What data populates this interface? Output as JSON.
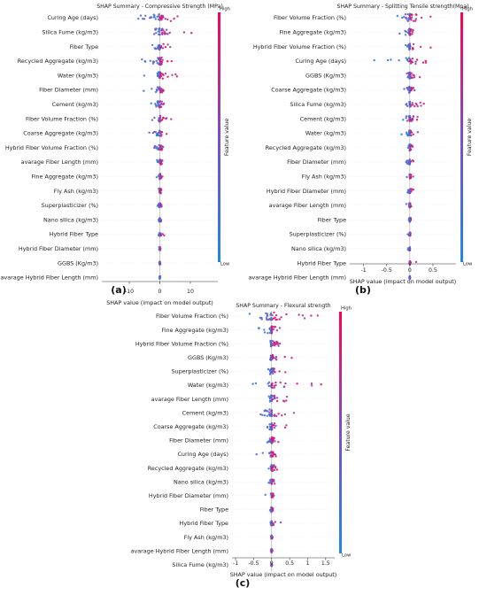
{
  "colorbar": {
    "high_label": "High",
    "low_label": "Low",
    "title": "Feature value",
    "low_color": "#1e88e5",
    "high_color": "#ff0052"
  },
  "chart_data": [
    {
      "type": "scatter",
      "panel_label": "(a)",
      "title": "SHAP Summary - Compressive Strength (MPa)",
      "xlabel": "SHAP value (impact on model output)",
      "xlim": [
        -19,
        19
      ],
      "xticks": [
        -10,
        0,
        10
      ],
      "features": [
        {
          "name": "Curing Age (days)",
          "min": -16,
          "max": 13,
          "spread": 0.9
        },
        {
          "name": "Silica Fume (kg/m3)",
          "min": -3,
          "max": 15,
          "spread": 0.8
        },
        {
          "name": "Fiber Type",
          "min": -3,
          "max": 9,
          "spread": 0.7
        },
        {
          "name": "Recycled Aggregate (kg/m3)",
          "min": -9,
          "max": 5,
          "spread": 0.8
        },
        {
          "name": "Water (kg/m3)",
          "min": -7,
          "max": 9,
          "spread": 0.7
        },
        {
          "name": "Fiber Diameter (mm)",
          "min": -6,
          "max": 4,
          "spread": 0.6
        },
        {
          "name": "Cement (kg/m3)",
          "min": -5,
          "max": 5,
          "spread": 0.7
        },
        {
          "name": "Fiber Volume Fraction (%)",
          "min": -3,
          "max": 4,
          "spread": 0.6
        },
        {
          "name": "Coarse Aggregate (kg/m3)",
          "min": -4,
          "max": 3,
          "spread": 0.6
        },
        {
          "name": "Hybrid Fiber Volume Fraction (%)",
          "min": -5,
          "max": 3,
          "spread": 0.5
        },
        {
          "name": "avarage Fiber Length (mm)",
          "min": -2,
          "max": 2,
          "spread": 0.5
        },
        {
          "name": "Fine Aggregate (kg/m3)",
          "min": -2,
          "max": 2,
          "spread": 0.5
        },
        {
          "name": "Fly Ash (kg/m3)",
          "min": -2,
          "max": 1,
          "spread": 0.4
        },
        {
          "name": "Superplasticizer (%)",
          "min": -1,
          "max": 1,
          "spread": 0.3
        },
        {
          "name": "Nano silica (kg/m3)",
          "min": -1,
          "max": 1,
          "spread": 0.3
        },
        {
          "name": "Hybrid Fiber Type",
          "min": -1,
          "max": 2,
          "spread": 0.2
        },
        {
          "name": "Hybrid Fiber Diameter (mm)",
          "min": -0.5,
          "max": 0.5,
          "spread": 0.2
        },
        {
          "name": "GGBS (Kg/m3)",
          "min": -0.3,
          "max": 0.3,
          "spread": 0.1
        },
        {
          "name": "avarage Hybrid Fiber Length (mm)",
          "min": -0.2,
          "max": 0.2,
          "spread": 0.1
        }
      ]
    },
    {
      "type": "scatter",
      "panel_label": "(b)",
      "title": "SHAP Summary - Splitting Tensile strength(Mpa)",
      "xlabel": "SHAP value (impact on model output)",
      "xlim": [
        -1.3,
        1.0
      ],
      "xticks": [
        -1.0,
        -0.5,
        0.0,
        0.5
      ],
      "features": [
        {
          "name": "Fiber Volume Fraction (%)",
          "min": -0.3,
          "max": 0.7,
          "spread": 0.9
        },
        {
          "name": "Fine Aggregate (kg/m3)",
          "min": -0.3,
          "max": 0.3,
          "spread": 0.8
        },
        {
          "name": "Hybrid Fiber Volume Fraction (%)",
          "min": -0.1,
          "max": 0.8,
          "spread": 0.6
        },
        {
          "name": "Curing Age (days)",
          "min": -1.1,
          "max": 0.4,
          "spread": 0.6
        },
        {
          "name": "GGBS (Kg/m3)",
          "min": -0.1,
          "max": 0.5,
          "spread": 0.6
        },
        {
          "name": "Coarse Aggregate (kg/m3)",
          "min": -0.3,
          "max": 0.2,
          "spread": 0.6
        },
        {
          "name": "Silica Fume (kg/m3)",
          "min": -0.1,
          "max": 0.4,
          "spread": 0.5
        },
        {
          "name": "Cement (kg/m3)",
          "min": -0.2,
          "max": 0.3,
          "spread": 0.6
        },
        {
          "name": "Water (kg/m3)",
          "min": -0.4,
          "max": 0.3,
          "spread": 0.5
        },
        {
          "name": "Recycled Aggregate (kg/m3)",
          "min": -0.1,
          "max": 0.1,
          "spread": 0.7
        },
        {
          "name": "Fiber Diameter (mm)",
          "min": -0.1,
          "max": 0.1,
          "spread": 0.5
        },
        {
          "name": "Fly Ash (kg/m3)",
          "min": -0.2,
          "max": 0.1,
          "spread": 0.4
        },
        {
          "name": "Hybrid Fiber Diameter (mm)",
          "min": -0.1,
          "max": 0.1,
          "spread": 0.4
        },
        {
          "name": "avarage Fiber Length (mm)",
          "min": -0.1,
          "max": 0.1,
          "spread": 0.4
        },
        {
          "name": "Fiber Type",
          "min": -0.05,
          "max": 0.05,
          "spread": 0.4
        },
        {
          "name": "Superplasticizer (%)",
          "min": -0.05,
          "max": 0.05,
          "spread": 0.3
        },
        {
          "name": "Nano silica (kg/m3)",
          "min": -0.05,
          "max": 0.05,
          "spread": 0.3
        },
        {
          "name": "Hybrid Fiber Type",
          "min": -0.02,
          "max": 0.2,
          "spread": 0.2
        },
        {
          "name": "avarage Hybrid Fiber Length (mm)",
          "min": -0.02,
          "max": 0.02,
          "spread": 0.2
        }
      ]
    },
    {
      "type": "scatter",
      "panel_label": "(c)",
      "title": "SHAP Summary - Flexural strength",
      "xlabel": "SHAP value (impact on model output)",
      "xlim": [
        -1.1,
        1.75
      ],
      "xticks": [
        -1.0,
        -0.5,
        0.0,
        0.5,
        1.0,
        1.5
      ],
      "features": [
        {
          "name": "Fiber Volume Fraction (%)",
          "min": -1.0,
          "max": 1.5,
          "spread": 0.9
        },
        {
          "name": "Fine Aggregate (kg/m3)",
          "min": -0.5,
          "max": 0.4,
          "spread": 0.8
        },
        {
          "name": "Hybrid Fiber Volume Fraction (%)",
          "min": -0.1,
          "max": 1.1,
          "spread": 0.6
        },
        {
          "name": "GGBS (Kg/m3)",
          "min": -0.1,
          "max": 1.1,
          "spread": 0.6
        },
        {
          "name": "Superplasticizer (%)",
          "min": -0.2,
          "max": 0.4,
          "spread": 0.6
        },
        {
          "name": "Water (kg/m3)",
          "min": -0.7,
          "max": 1.7,
          "spread": 0.6
        },
        {
          "name": "avarage Fiber Length (mm)",
          "min": -0.2,
          "max": 1.0,
          "spread": 0.8
        },
        {
          "name": "Cement (kg/m3)",
          "min": -0.4,
          "max": 1.1,
          "spread": 0.8
        },
        {
          "name": "Coarse Aggregate (kg/m3)",
          "min": -0.3,
          "max": 0.8,
          "spread": 0.7
        },
        {
          "name": "Fiber Diameter (mm)",
          "min": -0.3,
          "max": 0.3,
          "spread": 0.6
        },
        {
          "name": "Curing Age (days)",
          "min": -0.7,
          "max": 0.2,
          "spread": 0.4
        },
        {
          "name": "Recycled Aggregate (kg/m3)",
          "min": -0.1,
          "max": 0.2,
          "spread": 0.8
        },
        {
          "name": "Nano silica (kg/m3)",
          "min": -0.2,
          "max": 0.1,
          "spread": 0.4
        },
        {
          "name": "Hybrid Fiber Diameter (mm)",
          "min": -0.2,
          "max": 0.1,
          "spread": 0.4
        },
        {
          "name": "Fiber Type",
          "min": -0.1,
          "max": 0.2,
          "spread": 0.4
        },
        {
          "name": "Hybrid Fiber Type",
          "min": -0.05,
          "max": 0.4,
          "spread": 0.3
        },
        {
          "name": "Fly Ash (kg/m3)",
          "min": -0.05,
          "max": 0.05,
          "spread": 0.2
        },
        {
          "name": "avarage Hybrid Fiber Length (mm)",
          "min": -0.05,
          "max": 0.05,
          "spread": 0.2
        },
        {
          "name": "Silica Fume (kg/m3)",
          "min": -0.03,
          "max": 0.03,
          "spread": 0.1
        }
      ]
    }
  ]
}
